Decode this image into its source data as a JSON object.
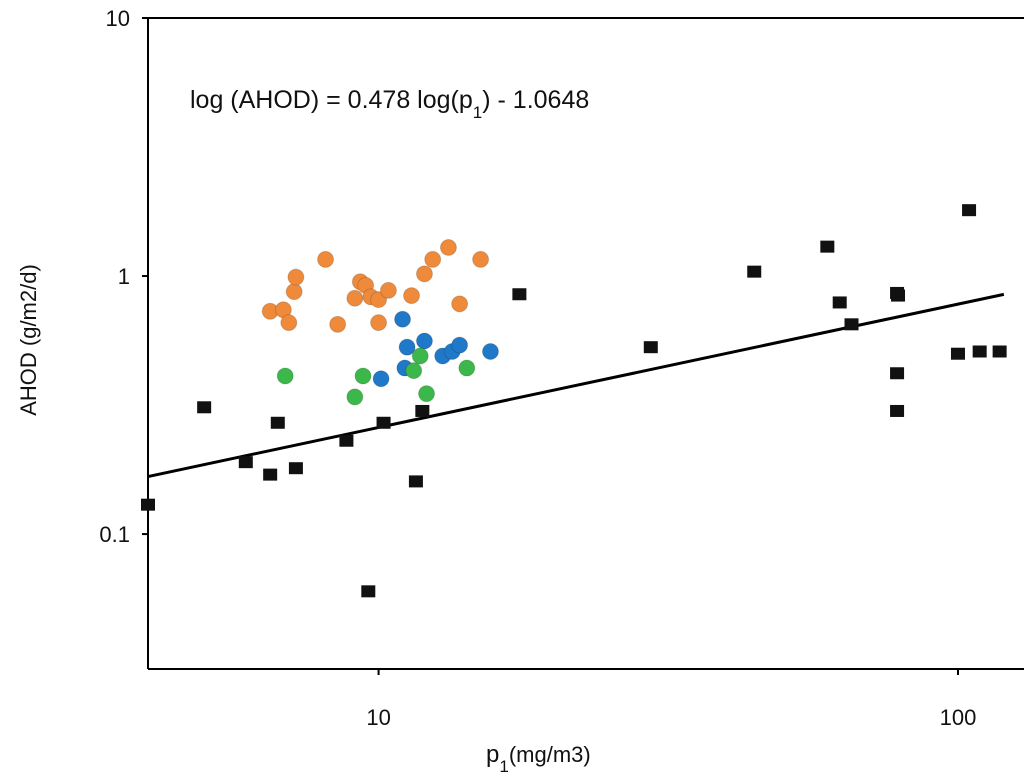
{
  "chart_data": {
    "type": "scatter",
    "title": "",
    "xlabel": "p",
    "xlabel_subscript": "1",
    "xlabel_unit": "(mg/m3)",
    "ylabel": "AHOD (g/m2/d)",
    "x_scale": "log",
    "y_scale": "log",
    "xlim": [
      4,
      130
    ],
    "ylim": [
      0.03,
      10
    ],
    "x_ticks": [
      10,
      100
    ],
    "x_tick_labels": [
      "10",
      "100"
    ],
    "y_ticks": [
      0.1,
      1,
      10
    ],
    "y_tick_labels": [
      "0.1",
      "1",
      "10"
    ],
    "grid": false,
    "legend": "none",
    "annotation": {
      "before": "log (AHOD) = 0.478 log(p",
      "subscript": "1",
      "after": ") - 1.0648"
    },
    "fit_line": {
      "slope": 0.478,
      "intercept": -1.0648,
      "x_range": [
        4,
        120
      ],
      "color": "#000000"
    },
    "series": [
      {
        "marker": "square",
        "color": "#111111",
        "points": [
          [
            4.0,
            0.13
          ],
          [
            5.0,
            0.31
          ],
          [
            5.9,
            0.19
          ],
          [
            6.5,
            0.17
          ],
          [
            6.7,
            0.27
          ],
          [
            7.2,
            0.18
          ],
          [
            8.8,
            0.23
          ],
          [
            9.6,
            0.06
          ],
          [
            10.2,
            0.27
          ],
          [
            11.6,
            0.16
          ],
          [
            11.9,
            0.3
          ],
          [
            17.5,
            0.85
          ],
          [
            29.5,
            0.53
          ],
          [
            44.5,
            1.04
          ],
          [
            59.5,
            1.3
          ],
          [
            62.5,
            0.79
          ],
          [
            65.5,
            0.65
          ],
          [
            78.5,
            0.86
          ],
          [
            78.8,
            0.84
          ],
          [
            78.5,
            0.42
          ],
          [
            78.5,
            0.3
          ],
          [
            100.0,
            0.5
          ],
          [
            104.5,
            1.8
          ],
          [
            109.0,
            0.51
          ],
          [
            118.0,
            0.51
          ]
        ]
      },
      {
        "marker": "circle",
        "color": "#ee8a3a",
        "points": [
          [
            6.5,
            0.73
          ],
          [
            6.85,
            0.74
          ],
          [
            7.0,
            0.66
          ],
          [
            7.15,
            0.87
          ],
          [
            7.2,
            0.99
          ],
          [
            8.1,
            1.16
          ],
          [
            8.5,
            0.65
          ],
          [
            9.1,
            0.82
          ],
          [
            9.3,
            0.95
          ],
          [
            9.5,
            0.92
          ],
          [
            9.7,
            0.83
          ],
          [
            10.0,
            0.66
          ],
          [
            10.0,
            0.81
          ],
          [
            10.4,
            0.88
          ],
          [
            11.4,
            0.84
          ],
          [
            12.0,
            1.02
          ],
          [
            12.4,
            1.16
          ],
          [
            13.2,
            1.29
          ],
          [
            13.8,
            0.78
          ],
          [
            15.0,
            1.16
          ]
        ]
      },
      {
        "marker": "circle",
        "color": "#1f78c8",
        "points": [
          [
            10.1,
            0.4
          ],
          [
            11.0,
            0.68
          ],
          [
            11.2,
            0.53
          ],
          [
            11.1,
            0.44
          ],
          [
            12.0,
            0.56
          ],
          [
            12.9,
            0.49
          ],
          [
            13.4,
            0.51
          ],
          [
            13.8,
            0.54
          ],
          [
            15.6,
            0.51
          ]
        ]
      },
      {
        "marker": "circle",
        "color": "#3cb84a",
        "points": [
          [
            6.9,
            0.41
          ],
          [
            9.1,
            0.34
          ],
          [
            9.4,
            0.41
          ],
          [
            11.5,
            0.43
          ],
          [
            11.8,
            0.49
          ],
          [
            12.1,
            0.35
          ],
          [
            14.2,
            0.44
          ]
        ]
      }
    ]
  }
}
